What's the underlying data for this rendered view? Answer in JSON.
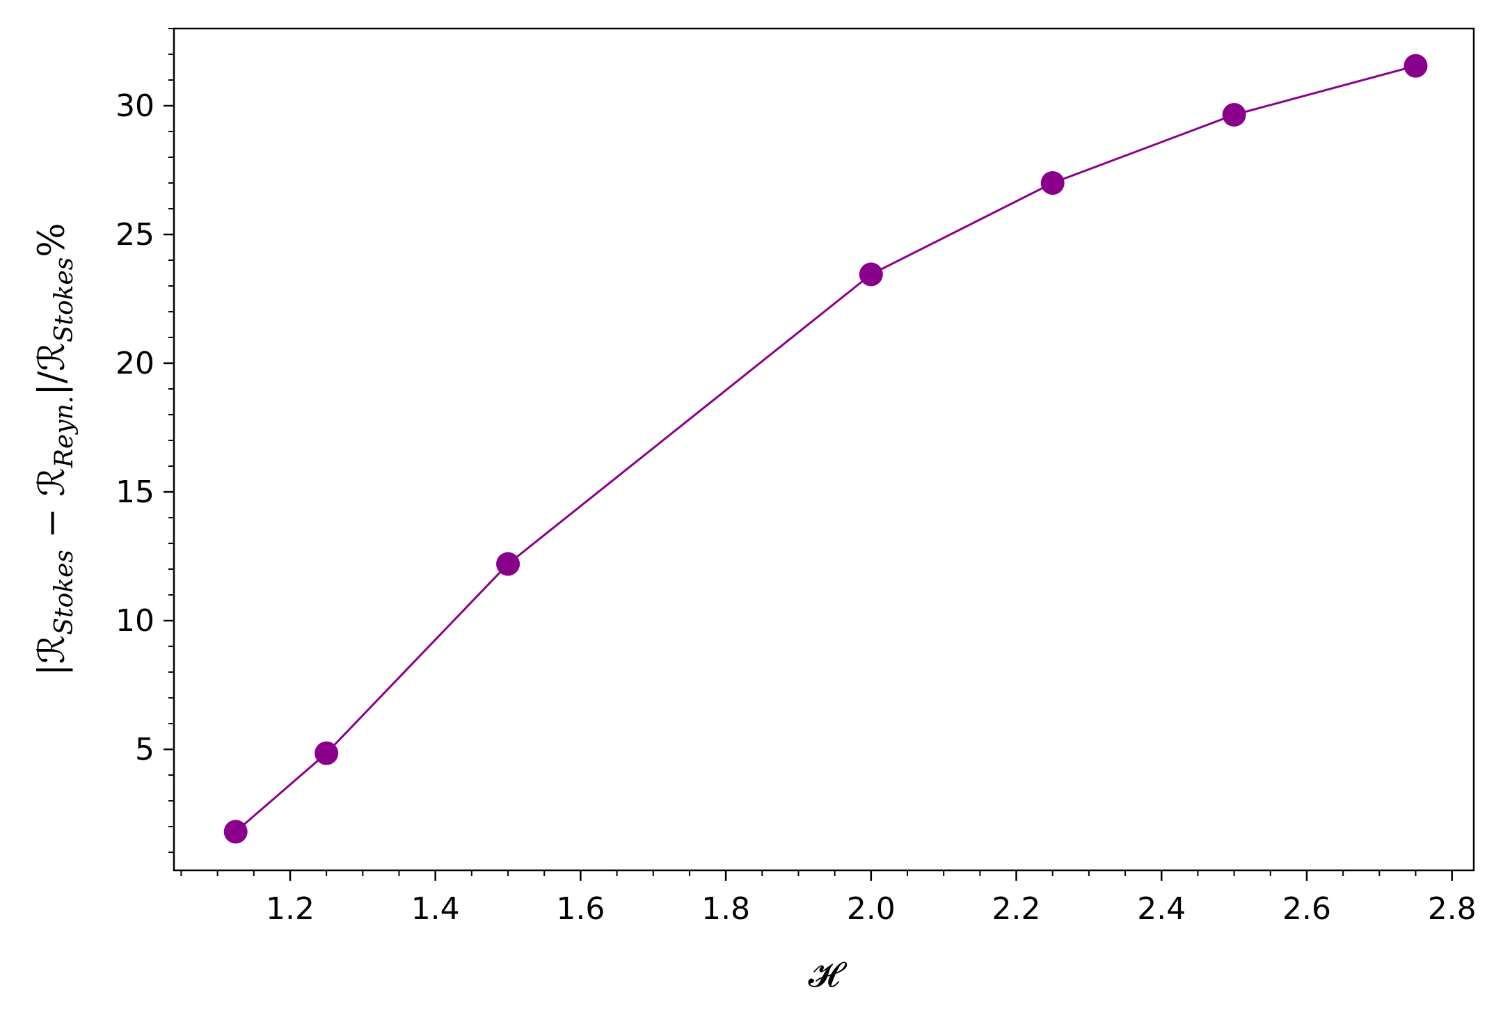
{
  "chart_data": {
    "type": "line",
    "xlabel": "𝓗",
    "ylabel": {
      "bar_open": "|",
      "r1": "ℛ",
      "r1_sub": "Stokes",
      "minus": " − ",
      "r2": "ℛ",
      "r2_sub": "Reyn.",
      "bar_close": "|/",
      "r3": "ℛ",
      "r3_sub": "Stokes",
      "percent": "%"
    },
    "xlim": [
      1.04,
      2.83
    ],
    "ylim": [
      0.3,
      33.0
    ],
    "x_ticks": [
      1.2,
      1.4,
      1.6,
      1.8,
      2.0,
      2.2,
      2.4,
      2.6,
      2.8
    ],
    "x_tick_labels": [
      "1.2",
      "1.4",
      "1.6",
      "1.8",
      "2.0",
      "2.2",
      "2.4",
      "2.6",
      "2.8"
    ],
    "y_ticks": [
      5,
      10,
      15,
      20,
      25,
      30
    ],
    "y_tick_labels": [
      "5",
      "10",
      "15",
      "20",
      "25",
      "30"
    ],
    "x_minor_step": 0.05,
    "y_minor_step": 1,
    "grid": false,
    "series": [
      {
        "color": "#8B008B",
        "marker": "circle",
        "x": [
          1.125,
          1.25,
          1.5,
          2.0,
          2.25,
          2.5,
          2.75
        ],
        "y": [
          1.8,
          4.85,
          12.2,
          23.45,
          27.0,
          29.65,
          31.55
        ]
      }
    ]
  }
}
